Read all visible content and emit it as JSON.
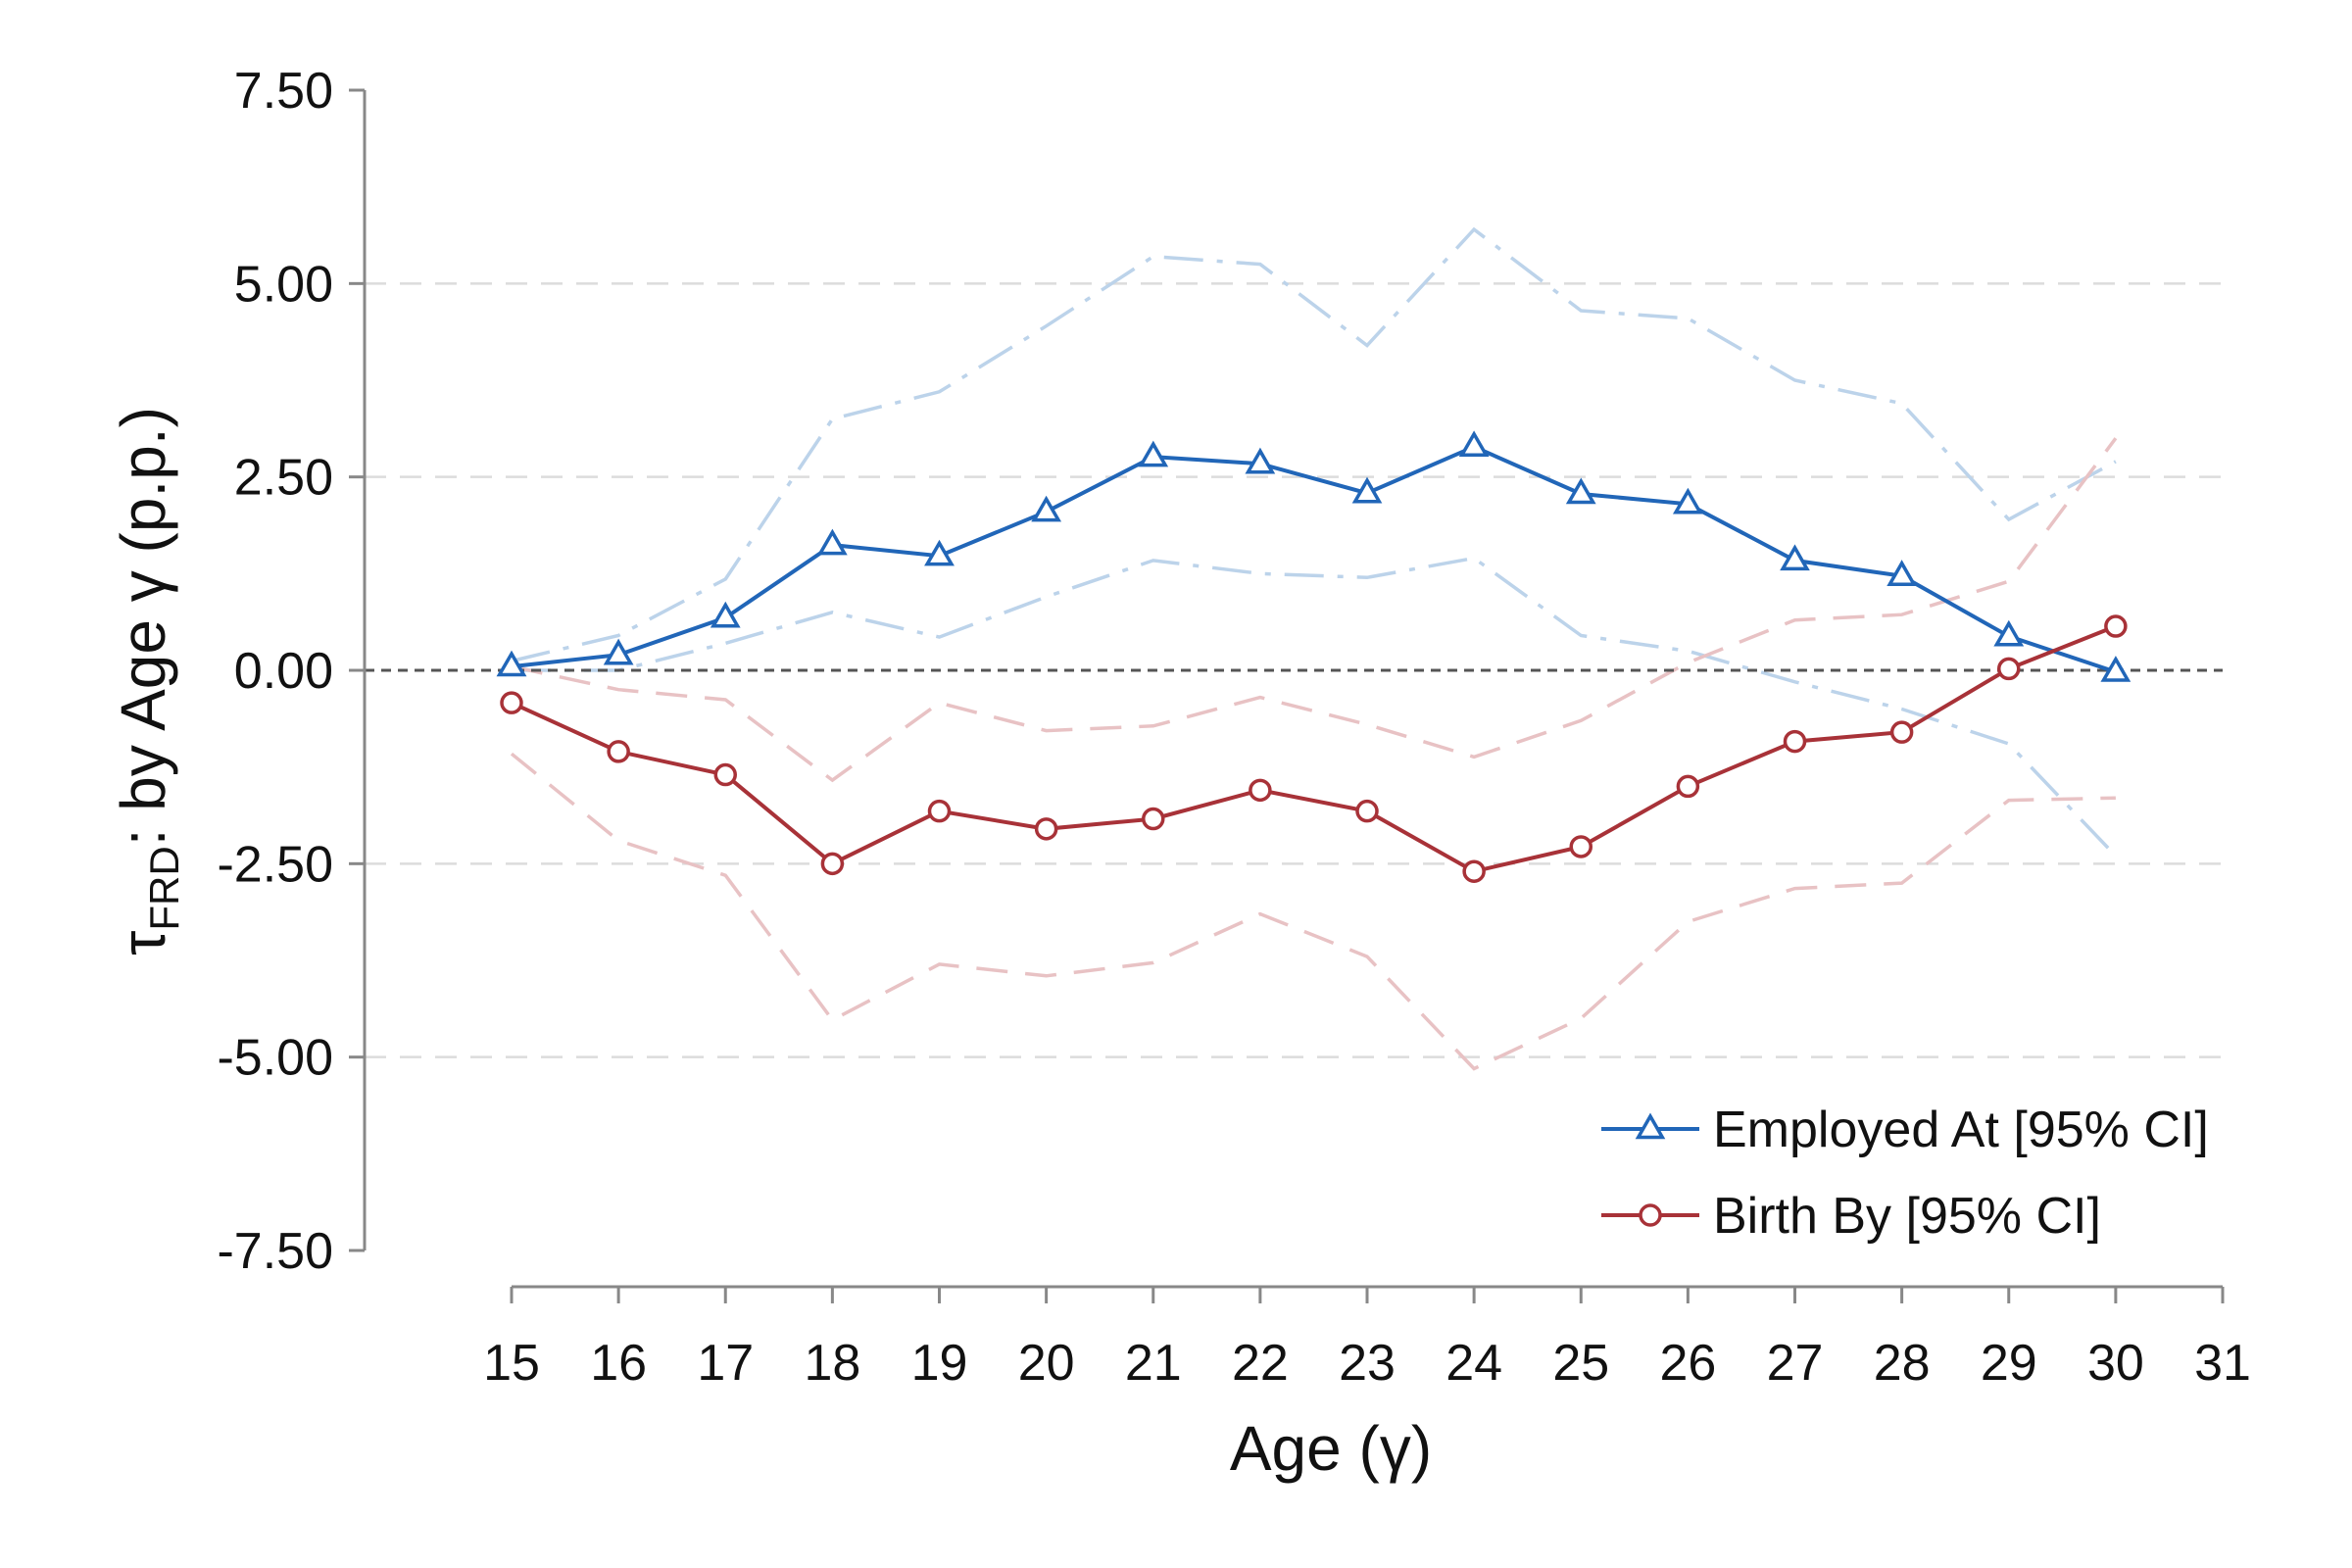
{
  "chart_data": {
    "type": "line",
    "title": "",
    "xlabel": "Age (γ)",
    "ylabel": {
      "prefix": "τ",
      "subscript": "FRD",
      "suffix": ": by Age γ (p.p.)"
    },
    "x_ticks": [
      15,
      16,
      17,
      18,
      19,
      20,
      21,
      22,
      23,
      24,
      25,
      26,
      27,
      28,
      29,
      30,
      31
    ],
    "y_ticks": [
      "7.50",
      "5.00",
      "2.50",
      "0.00",
      "-2.50",
      "-5.00",
      "-7.50"
    ],
    "y_tick_values": [
      7.5,
      5.0,
      2.5,
      0.0,
      -2.5,
      -5.0,
      -7.5
    ],
    "xlim": [
      15,
      31
    ],
    "ylim": [
      -7.5,
      7.5
    ],
    "grid": "horizontal dashed",
    "reference_line_y": 0,
    "legend_position": "bottom-right",
    "x": [
      15,
      16,
      17,
      18,
      19,
      20,
      21,
      22,
      23,
      24,
      25,
      26,
      27,
      28,
      29,
      30
    ],
    "series": [
      {
        "name": "Employed At [95% CI]",
        "color": "#2166b8",
        "ci_color": "#bcd3ea",
        "marker": "triangle",
        "values": [
          0.05,
          0.2,
          0.68,
          1.62,
          1.48,
          2.05,
          2.76,
          2.67,
          2.29,
          2.89,
          2.28,
          2.15,
          1.42,
          1.22,
          0.44,
          -0.02
        ],
        "ci_upper": [
          0.12,
          0.45,
          1.18,
          3.25,
          3.6,
          4.45,
          5.35,
          5.25,
          4.2,
          5.7,
          4.65,
          4.55,
          3.75,
          3.45,
          1.95,
          2.7
        ],
        "ci_lower": [
          0.0,
          0.0,
          0.35,
          0.75,
          0.43,
          0.95,
          1.42,
          1.25,
          1.2,
          1.45,
          0.45,
          0.25,
          -0.15,
          -0.5,
          -0.95,
          -2.4
        ]
      },
      {
        "name": "Birth By [95% CI]",
        "color": "#a83238",
        "ci_color": "#e8c2c4",
        "marker": "circle",
        "values": [
          -0.42,
          -1.05,
          -1.35,
          -2.5,
          -1.82,
          -2.05,
          -1.92,
          -1.55,
          -1.82,
          -2.6,
          -2.28,
          -1.5,
          -0.92,
          -0.8,
          0.02,
          0.57
        ],
        "ci_upper": [
          0.05,
          -0.25,
          -0.38,
          -1.42,
          -0.42,
          -0.78,
          -0.72,
          -0.35,
          -0.7,
          -1.12,
          -0.65,
          0.1,
          0.65,
          0.72,
          1.15,
          3.0
        ],
        "ci_lower": [
          -1.08,
          -2.2,
          -2.65,
          -4.52,
          -3.8,
          -3.95,
          -3.78,
          -3.15,
          -3.7,
          -5.15,
          -4.5,
          -3.25,
          -2.82,
          -2.75,
          -1.68,
          -1.65
        ]
      }
    ]
  }
}
